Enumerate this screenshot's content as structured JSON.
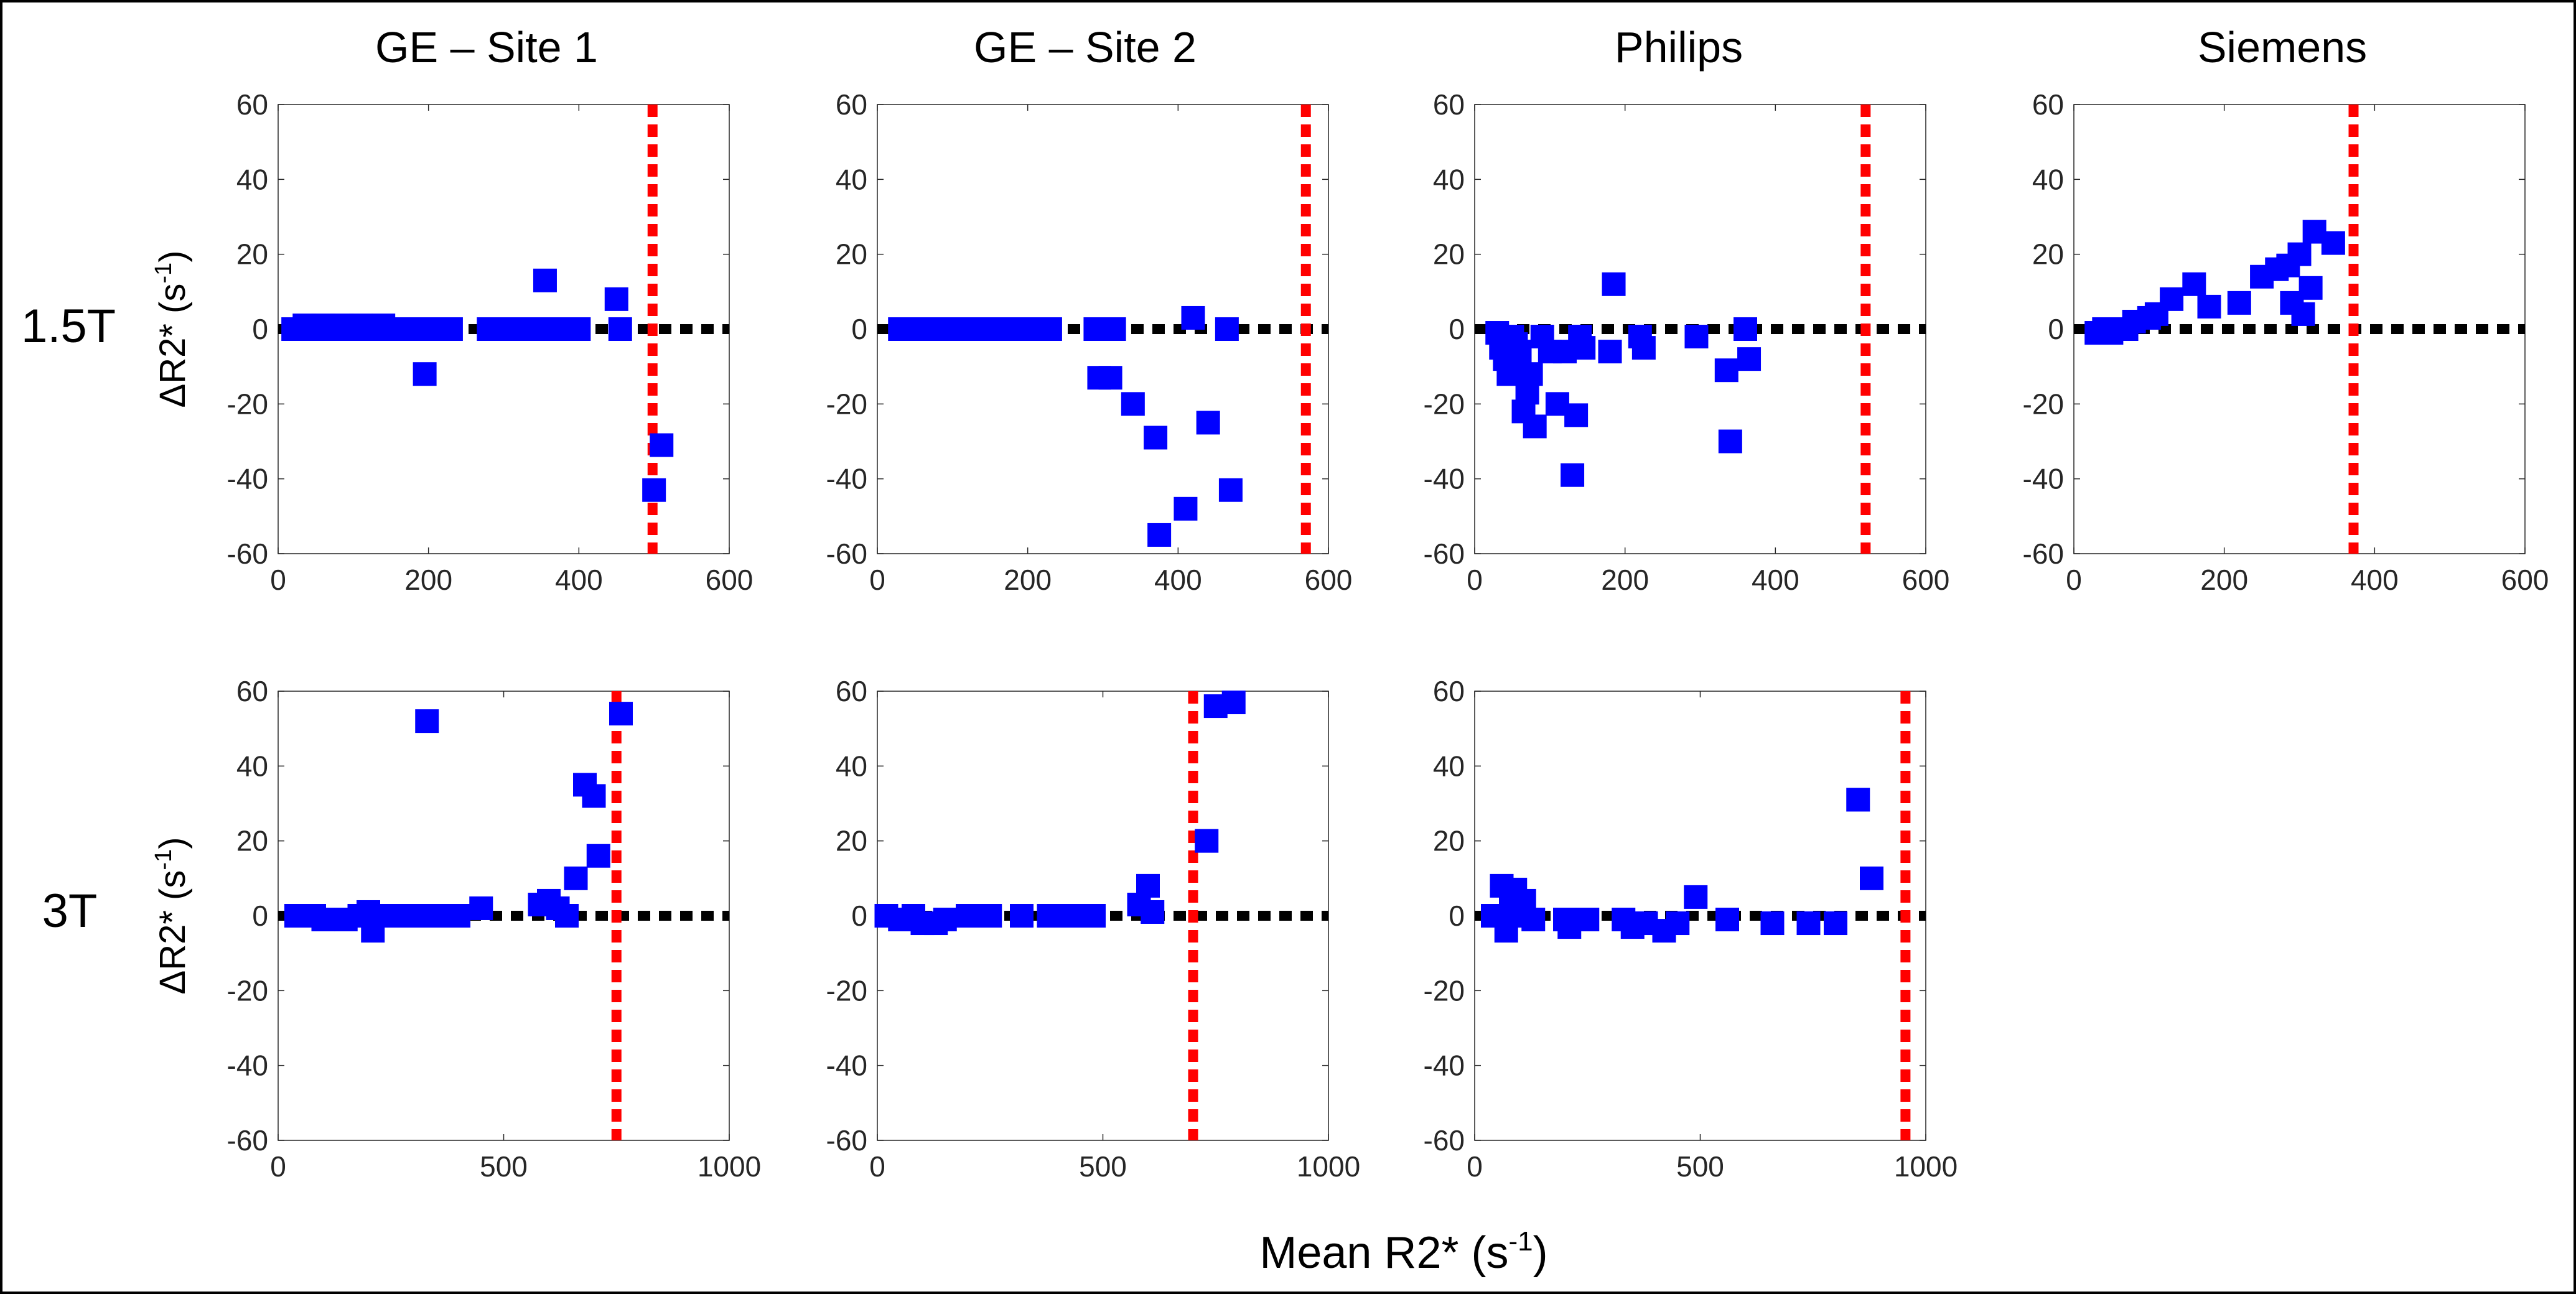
{
  "figure": {
    "row_labels": [
      "1.5T",
      "3T"
    ],
    "column_titles": [
      "GE – Site 1",
      "GE – Site 2",
      "Philips",
      "Siemens"
    ],
    "shared_xlabel": "Mean R2* (s",
    "shared_xlabel_sup": "-1",
    "shared_xlabel_close": ")",
    "ylabel": "ΔR2* (s",
    "ylabel_sup": "-1",
    "ylabel_close": ")",
    "colors": {
      "marker": "#0000ff",
      "threshold_line": "#ff0000",
      "zero_line": "#000000",
      "border": "#000000"
    }
  },
  "chart_data": [
    {
      "type": "scatter",
      "row": 0,
      "col": 0,
      "title": "GE – Site 1",
      "field": "1.5T",
      "xlim": [
        0,
        600
      ],
      "xticks": [
        0,
        200,
        400,
        600
      ],
      "ylim": [
        -60,
        60
      ],
      "yticks": [
        -60,
        -40,
        -20,
        0,
        20,
        40,
        60
      ],
      "vline_x": 498,
      "hline_y": 0,
      "points": [
        [
          20,
          0
        ],
        [
          35,
          1
        ],
        [
          45,
          0
        ],
        [
          60,
          1
        ],
        [
          75,
          0
        ],
        [
          85,
          1
        ],
        [
          100,
          0
        ],
        [
          110,
          1
        ],
        [
          125,
          0
        ],
        [
          140,
          1
        ],
        [
          155,
          0
        ],
        [
          170,
          0
        ],
        [
          180,
          0
        ],
        [
          195,
          -12
        ],
        [
          205,
          0
        ],
        [
          215,
          0
        ],
        [
          230,
          0
        ],
        [
          280,
          0
        ],
        [
          300,
          0
        ],
        [
          330,
          0
        ],
        [
          350,
          0
        ],
        [
          355,
          13
        ],
        [
          375,
          0
        ],
        [
          400,
          0
        ],
        [
          450,
          8
        ],
        [
          455,
          0
        ],
        [
          500,
          -43
        ],
        [
          510,
          -31
        ]
      ]
    },
    {
      "type": "scatter",
      "row": 0,
      "col": 1,
      "title": "GE – Site 2",
      "field": "1.5T",
      "xlim": [
        0,
        600
      ],
      "xticks": [
        0,
        200,
        400,
        600
      ],
      "ylim": [
        -60,
        60
      ],
      "yticks": [
        -60,
        -40,
        -20,
        0,
        20,
        40,
        60
      ],
      "vline_x": 570,
      "hline_y": 0,
      "points": [
        [
          30,
          0
        ],
        [
          45,
          0
        ],
        [
          55,
          0
        ],
        [
          70,
          0
        ],
        [
          85,
          0
        ],
        [
          95,
          0
        ],
        [
          110,
          0
        ],
        [
          130,
          0
        ],
        [
          150,
          0
        ],
        [
          170,
          0
        ],
        [
          200,
          0
        ],
        [
          230,
          0
        ],
        [
          290,
          0
        ],
        [
          295,
          -13
        ],
        [
          310,
          -13
        ],
        [
          315,
          0
        ],
        [
          340,
          -20
        ],
        [
          370,
          -29
        ],
        [
          375,
          -55
        ],
        [
          410,
          -48
        ],
        [
          420,
          3
        ],
        [
          440,
          -25
        ],
        [
          465,
          0
        ],
        [
          470,
          -43
        ]
      ]
    },
    {
      "type": "scatter",
      "row": 0,
      "col": 2,
      "title": "Philips",
      "field": "1.5T",
      "xlim": [
        0,
        600
      ],
      "xticks": [
        0,
        200,
        400,
        600
      ],
      "ylim": [
        -60,
        60
      ],
      "yticks": [
        -60,
        -40,
        -20,
        0,
        20,
        40,
        60
      ],
      "vline_x": 520,
      "hline_y": 0,
      "points": [
        [
          30,
          -1
        ],
        [
          35,
          -5
        ],
        [
          40,
          -8
        ],
        [
          45,
          -12
        ],
        [
          50,
          -2
        ],
        [
          55,
          -4
        ],
        [
          60,
          -6
        ],
        [
          65,
          -22
        ],
        [
          70,
          -17
        ],
        [
          75,
          -12
        ],
        [
          80,
          -26
        ],
        [
          90,
          -2
        ],
        [
          100,
          -6
        ],
        [
          110,
          -20
        ],
        [
          120,
          -6
        ],
        [
          130,
          -39
        ],
        [
          135,
          -23
        ],
        [
          140,
          -2
        ],
        [
          145,
          -5
        ],
        [
          180,
          -6
        ],
        [
          185,
          12
        ],
        [
          220,
          -2
        ],
        [
          225,
          -5
        ],
        [
          295,
          -2
        ],
        [
          335,
          -11
        ],
        [
          340,
          -30
        ],
        [
          360,
          0
        ],
        [
          365,
          -8
        ]
      ]
    },
    {
      "type": "scatter",
      "row": 0,
      "col": 3,
      "title": "Siemens",
      "field": "1.5T",
      "xlim": [
        0,
        600
      ],
      "xticks": [
        0,
        200,
        400,
        600
      ],
      "ylim": [
        -60,
        60
      ],
      "yticks": [
        -60,
        -40,
        -20,
        0,
        20,
        40,
        60
      ],
      "vline_x": 372,
      "hline_y": 0,
      "points": [
        [
          30,
          -1
        ],
        [
          40,
          0
        ],
        [
          50,
          -1
        ],
        [
          70,
          0
        ],
        [
          80,
          2
        ],
        [
          100,
          3
        ],
        [
          110,
          4
        ],
        [
          130,
          8
        ],
        [
          160,
          12
        ],
        [
          180,
          6
        ],
        [
          220,
          7
        ],
        [
          250,
          14
        ],
        [
          270,
          16
        ],
        [
          285,
          17
        ],
        [
          290,
          7
        ],
        [
          300,
          20
        ],
        [
          305,
          4
        ],
        [
          315,
          11
        ],
        [
          320,
          26
        ],
        [
          345,
          23
        ]
      ]
    },
    {
      "type": "scatter",
      "row": 1,
      "col": 0,
      "title": "GE – Site 1",
      "field": "3T",
      "xlim": [
        0,
        1000
      ],
      "xticks": [
        0,
        500,
        1000
      ],
      "ylim": [
        -60,
        60
      ],
      "yticks": [
        -60,
        -40,
        -20,
        0,
        20,
        40,
        60
      ],
      "vline_x": 750,
      "hline_y": 0,
      "points": [
        [
          40,
          0
        ],
        [
          60,
          0
        ],
        [
          80,
          0
        ],
        [
          100,
          -1
        ],
        [
          150,
          -1
        ],
        [
          180,
          0
        ],
        [
          200,
          1
        ],
        [
          210,
          -4
        ],
        [
          250,
          0
        ],
        [
          300,
          0
        ],
        [
          330,
          52
        ],
        [
          350,
          0
        ],
        [
          400,
          0
        ],
        [
          450,
          2
        ],
        [
          580,
          3
        ],
        [
          600,
          4
        ],
        [
          620,
          2
        ],
        [
          640,
          0
        ],
        [
          660,
          10
        ],
        [
          680,
          35
        ],
        [
          700,
          32
        ],
        [
          710,
          16
        ],
        [
          760,
          54
        ]
      ]
    },
    {
      "type": "scatter",
      "row": 1,
      "col": 1,
      "title": "GE – Site 2",
      "field": "3T",
      "xlim": [
        0,
        1000
      ],
      "xticks": [
        0,
        500,
        1000
      ],
      "ylim": [
        -60,
        60
      ],
      "yticks": [
        -60,
        -40,
        -20,
        0,
        20,
        40,
        60
      ],
      "vline_x": 700,
      "hline_y": 0,
      "points": [
        [
          20,
          0
        ],
        [
          50,
          -1
        ],
        [
          80,
          0
        ],
        [
          100,
          -2
        ],
        [
          130,
          -2
        ],
        [
          150,
          -1
        ],
        [
          200,
          0
        ],
        [
          250,
          0
        ],
        [
          320,
          0
        ],
        [
          380,
          0
        ],
        [
          420,
          0
        ],
        [
          450,
          0
        ],
        [
          480,
          0
        ],
        [
          580,
          3
        ],
        [
          600,
          8
        ],
        [
          610,
          1
        ],
        [
          730,
          20
        ],
        [
          750,
          56
        ],
        [
          790,
          57
        ]
      ]
    },
    {
      "type": "scatter",
      "row": 1,
      "col": 2,
      "title": "Philips",
      "field": "3T",
      "xlim": [
        0,
        1000
      ],
      "xticks": [
        0,
        500,
        1000
      ],
      "ylim": [
        -60,
        60
      ],
      "yticks": [
        -60,
        -40,
        -20,
        0,
        20,
        40,
        60
      ],
      "vline_x": 955,
      "hline_y": 0,
      "points": [
        [
          40,
          0
        ],
        [
          60,
          8
        ],
        [
          70,
          -4
        ],
        [
          80,
          2
        ],
        [
          90,
          7
        ],
        [
          100,
          0
        ],
        [
          110,
          4
        ],
        [
          130,
          -1
        ],
        [
          200,
          -1
        ],
        [
          210,
          -3
        ],
        [
          250,
          -1
        ],
        [
          330,
          -1
        ],
        [
          350,
          -3
        ],
        [
          380,
          -2
        ],
        [
          420,
          -4
        ],
        [
          450,
          -2
        ],
        [
          490,
          5
        ],
        [
          560,
          -1
        ],
        [
          660,
          -2
        ],
        [
          740,
          -2
        ],
        [
          800,
          -2
        ],
        [
          850,
          31
        ],
        [
          880,
          10
        ]
      ]
    }
  ]
}
